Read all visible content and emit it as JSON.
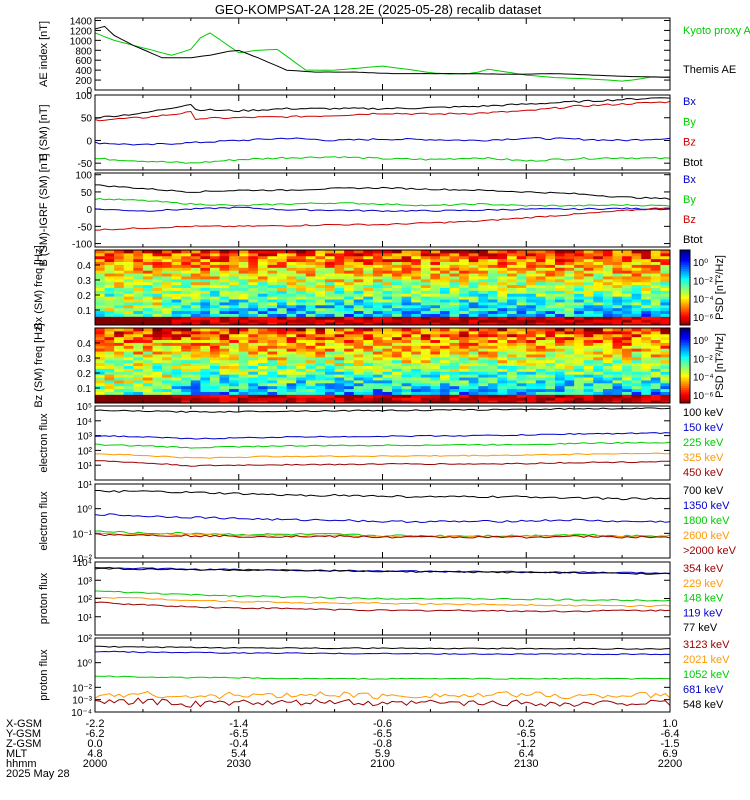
{
  "title": "GEO-KOMPSAT-2A 128.2E (2025-05-28) recalib dataset",
  "chart_data": [
    {
      "type": "line",
      "ylabel": "AE index [nT]",
      "ylim": [
        0,
        1450
      ],
      "yticks": [
        0,
        200,
        400,
        600,
        800,
        1000,
        1200,
        1400
      ],
      "series": [
        {
          "name": "Kyoto proxy AE",
          "color": "#00cc00",
          "x": [
            0,
            4,
            8,
            12,
            16,
            20,
            22,
            24,
            27,
            30,
            34,
            38,
            44,
            50,
            56,
            60,
            65,
            70,
            74,
            78,
            80,
            82,
            86,
            90,
            96,
            104,
            110,
            112,
            116,
            120
          ],
          "values": [
            1150,
            1000,
            900,
            800,
            700,
            820,
            1050,
            1150,
            950,
            750,
            800,
            820,
            400,
            400,
            450,
            480,
            420,
            350,
            320,
            330,
            360,
            420,
            360,
            300,
            250,
            220,
            180,
            200,
            260,
            250
          ]
        },
        {
          "name": "Themis AE",
          "color": "#000000",
          "x": [
            0,
            2,
            4,
            8,
            14,
            20,
            24,
            28,
            30,
            34,
            40,
            46,
            54,
            62,
            70,
            78,
            84,
            90,
            96,
            104,
            112,
            120
          ],
          "values": [
            1230,
            1280,
            1100,
            900,
            650,
            650,
            700,
            780,
            800,
            650,
            400,
            360,
            360,
            330,
            330,
            330,
            320,
            320,
            330,
            300,
            270,
            260
          ]
        }
      ]
    },
    {
      "type": "line",
      "ylabel": "B (SM) [nT]",
      "ylim": [
        -65,
        100
      ],
      "yticks": [
        -50,
        0,
        50,
        100
      ],
      "series": [
        {
          "name": "Bx",
          "color": "#0000cc",
          "x": [
            0,
            10,
            20,
            30,
            40,
            50,
            60,
            70,
            80,
            90,
            100,
            110,
            120
          ],
          "values": [
            -5,
            -10,
            -5,
            0,
            5,
            0,
            3,
            2,
            0,
            5,
            3,
            0,
            5
          ]
        },
        {
          "name": "By",
          "color": "#00cc00",
          "x": [
            0,
            10,
            20,
            30,
            40,
            50,
            60,
            70,
            80,
            90,
            100,
            110,
            120
          ],
          "values": [
            -40,
            -45,
            -50,
            -42,
            -38,
            -36,
            -40,
            -42,
            -38,
            -45,
            -40,
            -38,
            -40
          ]
        },
        {
          "name": "Bz",
          "color": "#cc0000",
          "x": [
            0,
            10,
            20,
            21,
            30,
            40,
            50,
            60,
            70,
            80,
            90,
            100,
            110,
            120
          ],
          "values": [
            45,
            50,
            62,
            48,
            50,
            52,
            55,
            60,
            58,
            60,
            65,
            75,
            80,
            85
          ]
        },
        {
          "name": "Btot",
          "color": "#000000",
          "x": [
            0,
            10,
            20,
            21,
            30,
            40,
            50,
            60,
            70,
            80,
            90,
            100,
            110,
            120
          ],
          "values": [
            50,
            60,
            80,
            68,
            65,
            70,
            70,
            70,
            72,
            75,
            80,
            85,
            90,
            95
          ]
        }
      ]
    },
    {
      "type": "line",
      "ylabel": "B (SM)-IGRF (SM) [nT]",
      "ylim": [
        -110,
        105
      ],
      "yticks": [
        -100,
        -50,
        0,
        50,
        100
      ],
      "series": [
        {
          "name": "Bx",
          "color": "#0000cc",
          "x": [
            0,
            10,
            20,
            30,
            40,
            50,
            60,
            70,
            80,
            90,
            100,
            110,
            120
          ],
          "values": [
            0,
            -5,
            0,
            5,
            -2,
            -3,
            -5,
            -5,
            -3,
            0,
            0,
            2,
            0
          ]
        },
        {
          "name": "By",
          "color": "#00cc00",
          "x": [
            0,
            10,
            20,
            30,
            40,
            50,
            60,
            70,
            80,
            90,
            100,
            110,
            120
          ],
          "values": [
            30,
            25,
            15,
            10,
            15,
            18,
            15,
            10,
            15,
            10,
            10,
            12,
            10
          ]
        },
        {
          "name": "Bz",
          "color": "#cc0000",
          "x": [
            0,
            10,
            20,
            30,
            40,
            50,
            60,
            70,
            80,
            90,
            100,
            110,
            120
          ],
          "values": [
            -60,
            -55,
            -50,
            -50,
            -48,
            -45,
            -45,
            -40,
            -35,
            -25,
            -15,
            -5,
            5
          ]
        },
        {
          "name": "Btot",
          "color": "#000000",
          "x": [
            0,
            10,
            20,
            30,
            40,
            50,
            60,
            70,
            80,
            90,
            100,
            110,
            120
          ],
          "values": [
            70,
            60,
            50,
            55,
            55,
            60,
            62,
            58,
            55,
            50,
            45,
            35,
            30
          ]
        }
      ]
    },
    {
      "type": "heatmap",
      "ylabel": "Bx (SM) freq [Hz]",
      "yticks": [
        "0.1",
        "0.2",
        "0.3",
        "0.4"
      ],
      "colorbar_label": "PSD [nT²/Hz]",
      "colorbar_ticks": [
        "10⁰",
        "10⁻²",
        "10⁻⁴",
        "10⁻⁶"
      ]
    },
    {
      "type": "heatmap",
      "ylabel": "Bz (SM) freq [Hz]",
      "yticks": [
        "0.1",
        "0.2",
        "0.3",
        "0.4"
      ],
      "colorbar_label": "PSD [nT²/Hz]",
      "colorbar_ticks": [
        "10⁰",
        "10⁻²",
        "10⁻⁴",
        "10⁻⁶"
      ]
    },
    {
      "type": "line",
      "ylabel": "electron flux",
      "yscale": "log",
      "ylim": [
        1,
        100000
      ],
      "yticks": [
        "10¹",
        "10²",
        "10³",
        "10⁴",
        "10⁵"
      ],
      "series": [
        {
          "name": "100 keV",
          "color": "#000000",
          "values": [
            50000,
            45000,
            40000,
            42000,
            45000,
            48000,
            50000,
            52000,
            55000,
            60000,
            65000,
            68000,
            70000
          ]
        },
        {
          "name": "150 keV",
          "color": "#0000cc",
          "values": [
            1000,
            800,
            600,
            700,
            800,
            850,
            900,
            950,
            1000,
            1100,
            1300,
            1400,
            1500
          ]
        },
        {
          "name": "225 keV",
          "color": "#00cc00",
          "values": [
            250,
            200,
            150,
            180,
            200,
            210,
            220,
            230,
            240,
            250,
            300,
            320,
            350
          ]
        },
        {
          "name": "325 keV",
          "color": "#ff9900",
          "values": [
            60,
            45,
            30,
            35,
            40,
            40,
            42,
            42,
            45,
            48,
            55,
            60,
            65
          ]
        },
        {
          "name": "450 keV",
          "color": "#990000",
          "values": [
            20,
            14,
            9,
            10,
            11,
            11,
            12,
            12,
            12,
            13,
            15,
            16,
            18
          ]
        }
      ]
    },
    {
      "type": "line",
      "ylabel": "electron flux",
      "yscale": "log",
      "ylim": [
        0.01,
        10
      ],
      "yticks": [
        "10⁻²",
        "10⁻¹",
        "10⁰",
        "10¹"
      ],
      "series": [
        {
          "name": "700 keV",
          "color": "#000000",
          "values": [
            5,
            5,
            4.5,
            4,
            3.5,
            3.5,
            3.2,
            3,
            3,
            3,
            2.8,
            2.5,
            2.5
          ]
        },
        {
          "name": "1350 keV",
          "color": "#0000cc",
          "values": [
            0.6,
            0.5,
            0.45,
            0.4,
            0.35,
            0.35,
            0.3,
            0.3,
            0.3,
            0.32,
            0.35,
            0.3,
            0.3
          ]
        },
        {
          "name": "1800 keV",
          "color": "#00cc00",
          "values": [
            0.12,
            0.1,
            0.1,
            0.09,
            0.09,
            0.09,
            0.08,
            0.08,
            0.08,
            0.08,
            0.09,
            0.08,
            0.08
          ]
        },
        {
          "name": "2600 keV",
          "color": "#ff9900",
          "values": [
            0.1,
            0.09,
            0.09,
            0.08,
            0.08,
            0.08,
            0.075,
            0.075,
            0.07,
            0.075,
            0.08,
            0.075,
            0.075
          ]
        },
        {
          "name": ">2000 keV",
          "color": "#990000",
          "values": [
            0.09,
            0.085,
            0.08,
            0.075,
            0.075,
            0.075,
            0.07,
            0.07,
            0.07,
            0.07,
            0.075,
            0.07,
            0.07
          ]
        }
      ]
    },
    {
      "type": "line",
      "ylabel": "proton flux",
      "yscale": "log",
      "ylim": [
        1,
        10000
      ],
      "yticks": [
        "10¹",
        "10²",
        "10³",
        "10⁴"
      ],
      "series": [
        {
          "name": "354 keV",
          "color": "#990000",
          "values": [
            60,
            45,
            35,
            30,
            28,
            25,
            22,
            22,
            22,
            20,
            20,
            22,
            22
          ]
        },
        {
          "name": "229 keV",
          "color": "#ff9900",
          "values": [
            120,
            100,
            80,
            70,
            60,
            55,
            55,
            50,
            48,
            45,
            42,
            40,
            40
          ]
        },
        {
          "name": "148 keV",
          "color": "#00cc00",
          "values": [
            250,
            200,
            160,
            140,
            120,
            110,
            100,
            100,
            95,
            90,
            85,
            80,
            80
          ]
        },
        {
          "name": "119 keV",
          "color": "#0000cc",
          "values": [
            5000,
            4500,
            4000,
            3800,
            3600,
            3400,
            3200,
            3000,
            2900,
            2800,
            2700,
            2600,
            2500
          ]
        },
        {
          "name": "77 keV",
          "color": "#000000",
          "values": [
            4500,
            4000,
            3800,
            3600,
            3400,
            3200,
            3000,
            2900,
            2800,
            2700,
            2500,
            2400,
            2300
          ]
        }
      ]
    },
    {
      "type": "line",
      "ylabel": "proton flux",
      "yscale": "log",
      "ylim": [
        0.0001,
        100
      ],
      "yticks": [
        "10⁻⁴",
        "10⁻³",
        "10⁻²",
        "10⁰",
        "10²"
      ],
      "series": [
        {
          "name": "3123 keV",
          "color": "#990000",
          "values": [
            0.0005,
            0.0008,
            0.0004,
            0.0006,
            0.0005,
            0.0007,
            0.0004,
            0.0006,
            0.0005,
            0.0006,
            0.0004,
            0.0006,
            0.0005
          ]
        },
        {
          "name": "2021 keV",
          "color": "#ff9900",
          "values": [
            0.002,
            0.003,
            0.0015,
            0.0025,
            0.002,
            0.003,
            0.0018,
            0.0025,
            0.002,
            0.0028,
            0.0018,
            0.0025,
            0.002
          ]
        },
        {
          "name": "1052 keV",
          "color": "#00cc00",
          "values": [
            0.08,
            0.07,
            0.06,
            0.06,
            0.05,
            0.05,
            0.05,
            0.05,
            0.05,
            0.05,
            0.05,
            0.05,
            0.05
          ]
        },
        {
          "name": "681 keV",
          "color": "#0000cc",
          "values": [
            8,
            7,
            6.5,
            6,
            6,
            5.5,
            5.5,
            5.2,
            5,
            5,
            5,
            4.8,
            4.8
          ]
        },
        {
          "name": "548 keV",
          "color": "#000000",
          "values": [
            20,
            18,
            17,
            16,
            16,
            15,
            15,
            14,
            14,
            14,
            14,
            13,
            13
          ]
        }
      ]
    }
  ],
  "x_axis": {
    "row_labels": [
      "X-GSM",
      "Y-GSM",
      "Z-GSM",
      "MLT",
      "hhmm",
      "2025 May 28"
    ],
    "ticks": [
      {
        "x": 0,
        "vals": [
          "-2.2",
          "-6.2",
          "0.0",
          "4.8",
          "2000"
        ]
      },
      {
        "x": 30,
        "vals": [
          "-1.4",
          "-6.5",
          "-0.4",
          "5.4",
          "2030"
        ]
      },
      {
        "x": 60,
        "vals": [
          "-0.6",
          "-6.5",
          "-0.8",
          "5.9",
          "2100"
        ]
      },
      {
        "x": 90,
        "vals": [
          "0.2",
          "-6.5",
          "-1.2",
          "6.4",
          "2130"
        ]
      },
      {
        "x": 120,
        "vals": [
          "1.0",
          "-6.4",
          "-1.5",
          "6.9",
          "2200"
        ]
      }
    ]
  }
}
